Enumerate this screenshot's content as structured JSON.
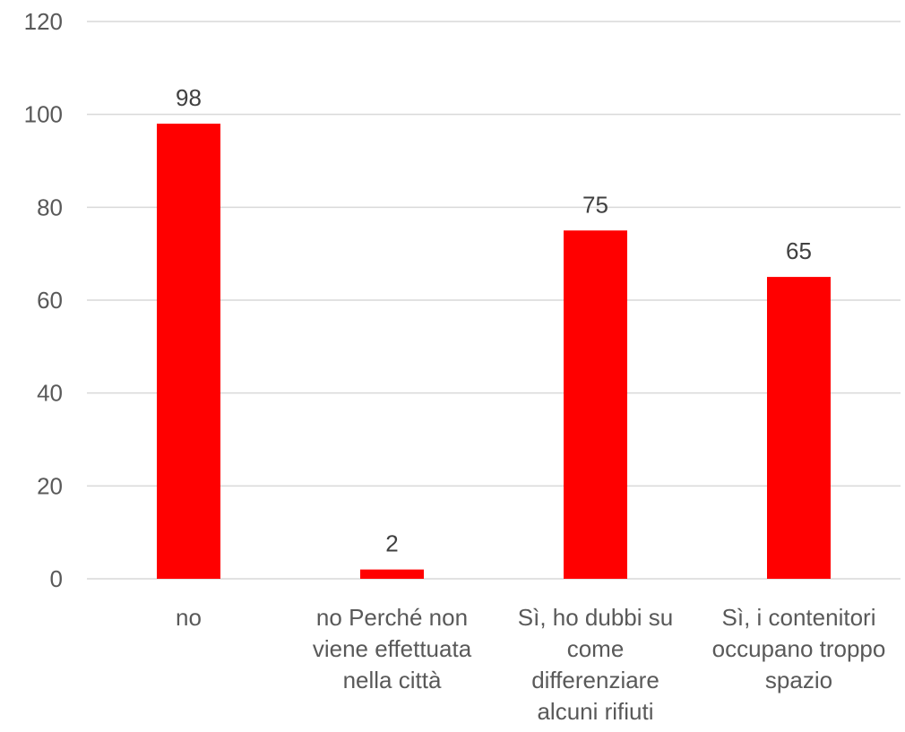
{
  "chart_data": {
    "type": "bar",
    "title": "",
    "xlabel": "",
    "ylabel": "",
    "categories": [
      "no",
      "no Perché non viene effettuata nella città",
      "Sì, ho dubbi su come differenziare alcuni rifiuti",
      "Sì, i contenitori occupano troppo spazio"
    ],
    "category_lines": [
      [
        "no"
      ],
      [
        "no Perché non",
        "viene effettuata",
        "nella città"
      ],
      [
        "Sì, ho dubbi su",
        "come",
        "differenziare",
        "alcuni rifiuti"
      ],
      [
        "Sì, i contenitori",
        "occupano troppo",
        "spazio"
      ]
    ],
    "values": [
      98,
      2,
      75,
      65
    ],
    "data_labels": [
      "98",
      "2",
      "75",
      "65"
    ],
    "ylim": [
      0,
      120
    ],
    "yticks": [
      0,
      20,
      40,
      60,
      80,
      100,
      120
    ],
    "ytick_labels": [
      "0",
      "20",
      "40",
      "60",
      "80",
      "100",
      "120"
    ],
    "grid": true,
    "legend": "none",
    "bar_color": "#ff0000"
  }
}
